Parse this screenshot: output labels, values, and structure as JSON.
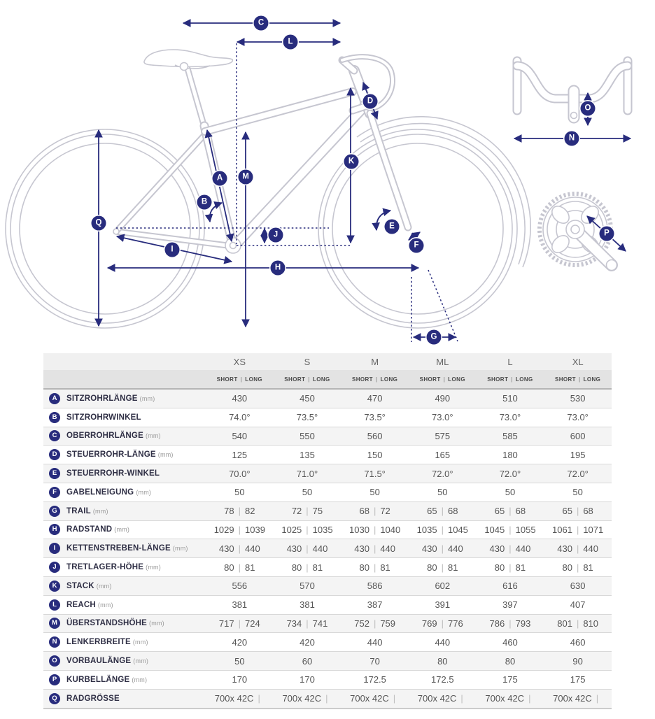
{
  "diagram": {
    "badges": {
      "A": "A",
      "B": "B",
      "C": "C",
      "D": "D",
      "E": "E",
      "F": "F",
      "G": "G",
      "H": "H",
      "I": "I",
      "J": "J",
      "K": "K",
      "L": "L",
      "M": "M",
      "N": "N",
      "O": "O",
      "P": "P",
      "Q": "Q"
    }
  },
  "table": {
    "size_headers": [
      "XS",
      "S",
      "M",
      "ML",
      "L",
      "XL"
    ],
    "sub_header": {
      "short": "SHORT",
      "long": "LONG"
    },
    "rows": [
      {
        "id": "A",
        "label": "SITZROHRLÄNGE",
        "unit": "(mm)",
        "values": [
          [
            "430"
          ],
          [
            "450"
          ],
          [
            "470"
          ],
          [
            "490"
          ],
          [
            "510"
          ],
          [
            "530"
          ]
        ]
      },
      {
        "id": "B",
        "label": "SITZROHRWINKEL",
        "unit": "",
        "values": [
          [
            "74.0°"
          ],
          [
            "73.5°"
          ],
          [
            "73.5°"
          ],
          [
            "73.0°"
          ],
          [
            "73.0°"
          ],
          [
            "73.0°"
          ]
        ]
      },
      {
        "id": "C",
        "label": "OBERROHRLÄNGE",
        "unit": "(mm)",
        "values": [
          [
            "540"
          ],
          [
            "550"
          ],
          [
            "560"
          ],
          [
            "575"
          ],
          [
            "585"
          ],
          [
            "600"
          ]
        ]
      },
      {
        "id": "D",
        "label": "STEUERROHR-LÄNGE",
        "unit": "(mm)",
        "values": [
          [
            "125"
          ],
          [
            "135"
          ],
          [
            "150"
          ],
          [
            "165"
          ],
          [
            "180"
          ],
          [
            "195"
          ]
        ]
      },
      {
        "id": "E",
        "label": "STEUERROHR-WINKEL",
        "unit": "",
        "values": [
          [
            "70.0°"
          ],
          [
            "71.0°"
          ],
          [
            "71.5°"
          ],
          [
            "72.0°"
          ],
          [
            "72.0°"
          ],
          [
            "72.0°"
          ]
        ]
      },
      {
        "id": "F",
        "label": "GABELNEIGUNG",
        "unit": "(mm)",
        "values": [
          [
            "50"
          ],
          [
            "50"
          ],
          [
            "50"
          ],
          [
            "50"
          ],
          [
            "50"
          ],
          [
            "50"
          ]
        ]
      },
      {
        "id": "G",
        "label": "TRAIL",
        "unit": "(mm)",
        "values": [
          [
            "78",
            "82"
          ],
          [
            "72",
            "75"
          ],
          [
            "68",
            "72"
          ],
          [
            "65",
            "68"
          ],
          [
            "65",
            "68"
          ],
          [
            "65",
            "68"
          ]
        ]
      },
      {
        "id": "H",
        "label": "RADSTAND",
        "unit": "(mm)",
        "values": [
          [
            "1029",
            "1039"
          ],
          [
            "1025",
            "1035"
          ],
          [
            "1030",
            "1040"
          ],
          [
            "1035",
            "1045"
          ],
          [
            "1045",
            "1055"
          ],
          [
            "1061",
            "1071"
          ]
        ]
      },
      {
        "id": "I",
        "label": "KETTENSTREBEN-LÄNGE",
        "unit": "(mm)",
        "values": [
          [
            "430",
            "440"
          ],
          [
            "430",
            "440"
          ],
          [
            "430",
            "440"
          ],
          [
            "430",
            "440"
          ],
          [
            "430",
            "440"
          ],
          [
            "430",
            "440"
          ]
        ]
      },
      {
        "id": "J",
        "label": "TRETLAGER-HÖHE",
        "unit": "(mm)",
        "values": [
          [
            "80",
            "81"
          ],
          [
            "80",
            "81"
          ],
          [
            "80",
            "81"
          ],
          [
            "80",
            "81"
          ],
          [
            "80",
            "81"
          ],
          [
            "80",
            "81"
          ]
        ]
      },
      {
        "id": "K",
        "label": "STACK",
        "unit": "(mm)",
        "values": [
          [
            "556"
          ],
          [
            "570"
          ],
          [
            "586"
          ],
          [
            "602"
          ],
          [
            "616"
          ],
          [
            "630"
          ]
        ]
      },
      {
        "id": "L",
        "label": "REACH",
        "unit": "(mm)",
        "values": [
          [
            "381"
          ],
          [
            "381"
          ],
          [
            "387"
          ],
          [
            "391"
          ],
          [
            "397"
          ],
          [
            "407"
          ]
        ]
      },
      {
        "id": "M",
        "label": "ÜBERSTANDSHÖHE",
        "unit": "(mm)",
        "values": [
          [
            "717",
            "724"
          ],
          [
            "734",
            "741"
          ],
          [
            "752",
            "759"
          ],
          [
            "769",
            "776"
          ],
          [
            "786",
            "793"
          ],
          [
            "801",
            "810"
          ]
        ]
      },
      {
        "id": "N",
        "label": "LENKERBREITE",
        "unit": "(mm)",
        "values": [
          [
            "420"
          ],
          [
            "420"
          ],
          [
            "440"
          ],
          [
            "440"
          ],
          [
            "460"
          ],
          [
            "460"
          ]
        ]
      },
      {
        "id": "O",
        "label": "VORBAULÄNGE",
        "unit": "(mm)",
        "values": [
          [
            "50"
          ],
          [
            "60"
          ],
          [
            "70"
          ],
          [
            "80"
          ],
          [
            "80"
          ],
          [
            "90"
          ]
        ]
      },
      {
        "id": "P",
        "label": "KURBELLÄNGE",
        "unit": "(mm)",
        "values": [
          [
            "170"
          ],
          [
            "170"
          ],
          [
            "172.5"
          ],
          [
            "172.5"
          ],
          [
            "175"
          ],
          [
            "175"
          ]
        ]
      },
      {
        "id": "Q",
        "label": "RADGRÖSSE",
        "unit": "",
        "values": [
          [
            "700x 42C",
            ""
          ],
          [
            "700x 42C",
            ""
          ],
          [
            "700x 42C",
            ""
          ],
          [
            "700x 42C",
            ""
          ],
          [
            "700x 42C",
            ""
          ],
          [
            "700x 42C",
            ""
          ]
        ]
      }
    ]
  },
  "colors": {
    "accent": "#282c7d",
    "line_art": "#c6c6d0",
    "row_stripe": "#f4f4f4",
    "header_band": "#e3e3e3"
  }
}
